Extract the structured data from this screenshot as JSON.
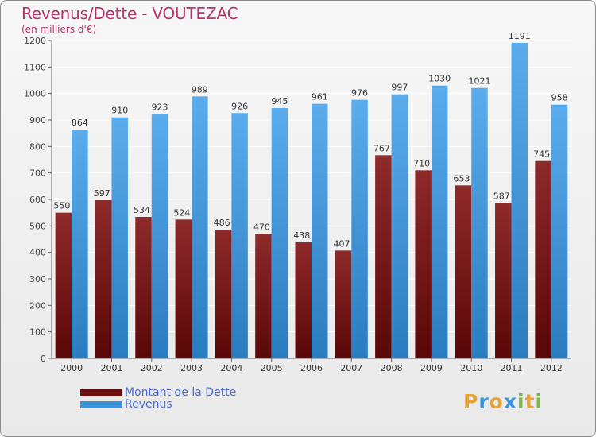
{
  "header": {
    "title": "Revenus/Dette - VOUTEZAC",
    "subtitle": "(en milliers d'€)"
  },
  "colors": {
    "dette": "#7a1a1a",
    "revenus": "#3a94da",
    "title": "#b5346a",
    "legend_text": "#4d6bd6"
  },
  "logo": {
    "letters": [
      "P",
      "r",
      "o",
      "x",
      "i",
      "t",
      "i"
    ],
    "colors": [
      "#e7a233",
      "#3a94da",
      "#e7a233",
      "#3a94da",
      "#7ab648",
      "#e7a233",
      "#7ab648"
    ]
  },
  "chart_data": {
    "type": "bar",
    "title": "Revenus/Dette - VOUTEZAC",
    "subtitle": "(en milliers d'€)",
    "categories": [
      "2000",
      "2001",
      "2002",
      "2003",
      "2004",
      "2005",
      "2006",
      "2007",
      "2008",
      "2009",
      "2010",
      "2011",
      "2012"
    ],
    "series": [
      {
        "name": "Montant de la Dette",
        "values": [
          550,
          597,
          534,
          524,
          486,
          470,
          438,
          407,
          767,
          710,
          653,
          587,
          745
        ]
      },
      {
        "name": "Revenus",
        "values": [
          864,
          910,
          923,
          989,
          926,
          945,
          961,
          976,
          997,
          1030,
          1021,
          1191,
          958
        ]
      }
    ],
    "ylim": [
      0,
      1200
    ],
    "yticks": [
      0,
      100,
      200,
      300,
      400,
      500,
      600,
      700,
      800,
      900,
      1000,
      1100,
      1200
    ],
    "grid": true,
    "legend": "bottom-left"
  }
}
